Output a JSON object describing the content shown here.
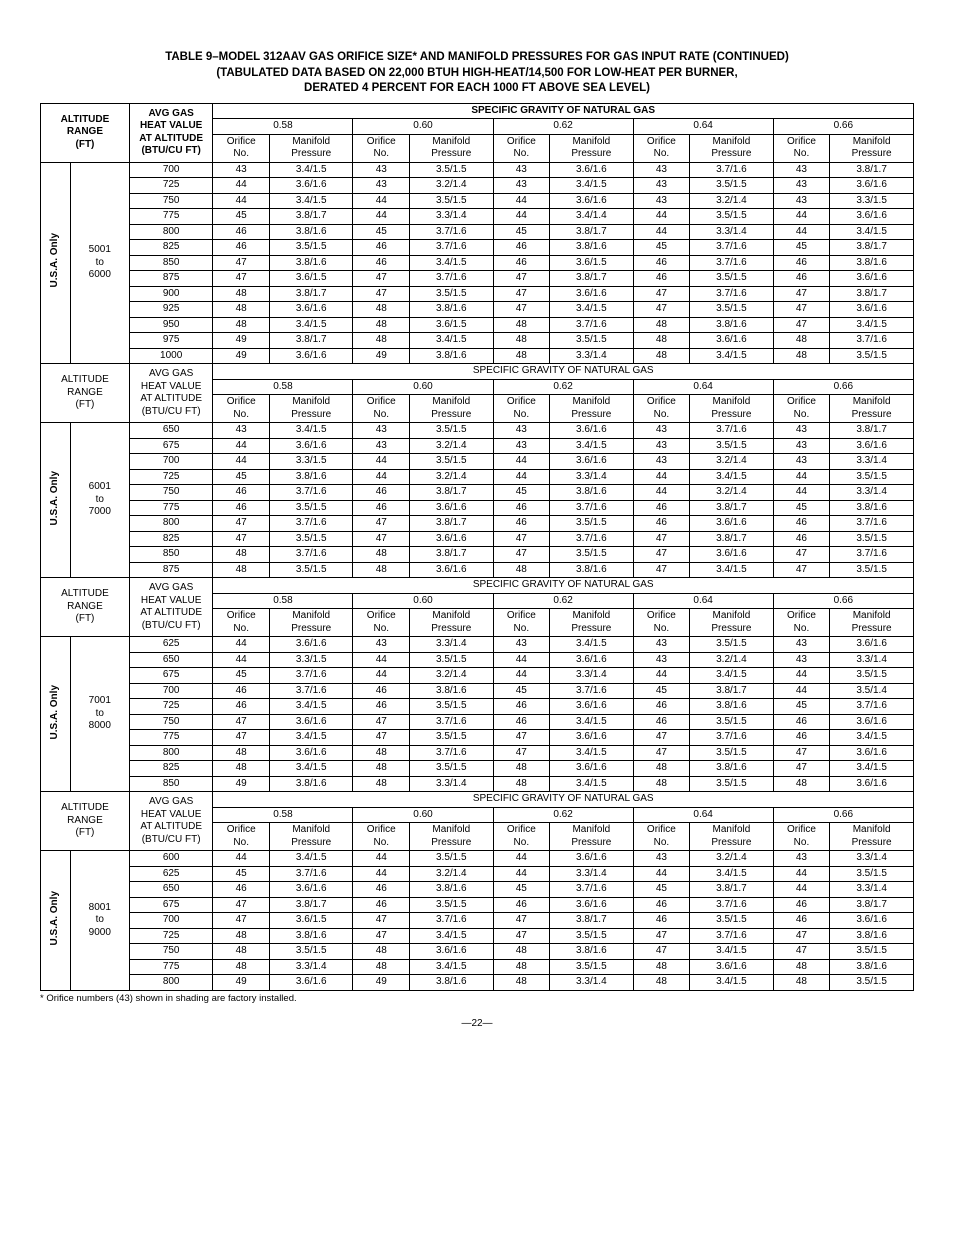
{
  "title_lines": [
    "TABLE 9–MODEL 312AAV GAS ORIFICE SIZE* AND MANIFOLD PRESSURES FOR GAS INPUT RATE (CONTINUED)",
    "(TABULATED DATA BASED ON 22,000 BTUH HIGH-HEAT/14,500 FOR LOW-HEAT PER BURNER,",
    "DERATED 4 PERCENT FOR EACH 1000 FT ABOVE SEA LEVEL)"
  ],
  "col_alt_header": "ALTITUDE\nRANGE\n(FT)",
  "col_btu_header": "AVG GAS\nHEAT VALUE\nAT ALTITUDE\n(BTU/CU FT)",
  "sg_header": "SPECIFIC GRAVITY OF NATURAL GAS",
  "sg_values": [
    "0.58",
    "0.60",
    "0.62",
    "0.64",
    "0.66"
  ],
  "sub_no": "Orifice\nNo.",
  "sub_pr": "Manifold\nPressure",
  "region_label": "U.S.A. Only",
  "footnote": "* Orifice numbers (43) shown in shading are factory installed.",
  "page_num": "—22—",
  "blocks": [
    {
      "alt_range": "5001\nto\n6000",
      "btu": [
        "700",
        "725",
        "750",
        "775",
        "800",
        "825",
        "850",
        "875",
        "900",
        "925",
        "950",
        "975",
        "1000"
      ],
      "rows": [
        [
          "43",
          "3.4/1.5",
          "43",
          "3.5/1.5",
          "43",
          "3.6/1.6",
          "43",
          "3.7/1.6",
          "43",
          "3.8/1.7"
        ],
        [
          "44",
          "3.6/1.6",
          "43",
          "3.2/1.4",
          "43",
          "3.4/1.5",
          "43",
          "3.5/1.5",
          "43",
          "3.6/1.6"
        ],
        [
          "44",
          "3.4/1.5",
          "44",
          "3.5/1.5",
          "44",
          "3.6/1.6",
          "43",
          "3.2/1.4",
          "43",
          "3.3/1.5"
        ],
        [
          "45",
          "3.8/1.7",
          "44",
          "3.3/1.4",
          "44",
          "3.4/1.4",
          "44",
          "3.5/1.5",
          "44",
          "3.6/1.6"
        ],
        [
          "46",
          "3.8/1.6",
          "45",
          "3.7/1.6",
          "45",
          "3.8/1.7",
          "44",
          "3.3/1.4",
          "44",
          "3.4/1.5"
        ],
        [
          "46",
          "3.5/1.5",
          "46",
          "3.7/1.6",
          "46",
          "3.8/1.6",
          "45",
          "3.7/1.6",
          "45",
          "3.8/1.7"
        ],
        [
          "47",
          "3.8/1.6",
          "46",
          "3.4/1.5",
          "46",
          "3.6/1.5",
          "46",
          "3.7/1.6",
          "46",
          "3.8/1.6"
        ],
        [
          "47",
          "3.6/1.5",
          "47",
          "3.7/1.6",
          "47",
          "3.8/1.7",
          "46",
          "3.5/1.5",
          "46",
          "3.6/1.6"
        ],
        [
          "48",
          "3.8/1.7",
          "47",
          "3.5/1.5",
          "47",
          "3.6/1.6",
          "47",
          "3.7/1.6",
          "47",
          "3.8/1.7"
        ],
        [
          "48",
          "3.6/1.6",
          "48",
          "3.8/1.6",
          "47",
          "3.4/1.5",
          "47",
          "3.5/1.5",
          "47",
          "3.6/1.6"
        ],
        [
          "48",
          "3.4/1.5",
          "48",
          "3.6/1.5",
          "48",
          "3.7/1.6",
          "48",
          "3.8/1.6",
          "47",
          "3.4/1.5"
        ],
        [
          "49",
          "3.8/1.7",
          "48",
          "3.4/1.5",
          "48",
          "3.5/1.5",
          "48",
          "3.6/1.6",
          "48",
          "3.7/1.6"
        ],
        [
          "49",
          "3.6/1.6",
          "49",
          "3.8/1.6",
          "48",
          "3.3/1.4",
          "48",
          "3.4/1.5",
          "48",
          "3.5/1.5"
        ]
      ]
    },
    {
      "alt_range": "6001\nto\n7000",
      "btu": [
        "650",
        "675",
        "700",
        "725",
        "750",
        "775",
        "800",
        "825",
        "850",
        "875"
      ],
      "rows": [
        [
          "43",
          "3.4/1.5",
          "43",
          "3.5/1.5",
          "43",
          "3.6/1.6",
          "43",
          "3.7/1.6",
          "43",
          "3.8/1.7"
        ],
        [
          "44",
          "3.6/1.6",
          "43",
          "3.2/1.4",
          "43",
          "3.4/1.5",
          "43",
          "3.5/1.5",
          "43",
          "3.6/1.6"
        ],
        [
          "44",
          "3.3/1.5",
          "44",
          "3.5/1.5",
          "44",
          "3.6/1.6",
          "43",
          "3.2/1.4",
          "43",
          "3.3/1.4"
        ],
        [
          "45",
          "3.8/1.6",
          "44",
          "3.2/1.4",
          "44",
          "3.3/1.4",
          "44",
          "3.4/1.5",
          "44",
          "3.5/1.5"
        ],
        [
          "46",
          "3.7/1.6",
          "46",
          "3.8/1.7",
          "45",
          "3.8/1.6",
          "44",
          "3.2/1.4",
          "44",
          "3.3/1.4"
        ],
        [
          "46",
          "3.5/1.5",
          "46",
          "3.6/1.6",
          "46",
          "3.7/1.6",
          "46",
          "3.8/1.7",
          "45",
          "3.8/1.6"
        ],
        [
          "47",
          "3.7/1.6",
          "47",
          "3.8/1.7",
          "46",
          "3.5/1.5",
          "46",
          "3.6/1.6",
          "46",
          "3.7/1.6"
        ],
        [
          "47",
          "3.5/1.5",
          "47",
          "3.6/1.6",
          "47",
          "3.7/1.6",
          "47",
          "3.8/1.7",
          "46",
          "3.5/1.5"
        ],
        [
          "48",
          "3.7/1.6",
          "48",
          "3.8/1.7",
          "47",
          "3.5/1.5",
          "47",
          "3.6/1.6",
          "47",
          "3.7/1.6"
        ],
        [
          "48",
          "3.5/1.5",
          "48",
          "3.6/1.6",
          "48",
          "3.8/1.6",
          "47",
          "3.4/1.5",
          "47",
          "3.5/1.5"
        ]
      ]
    },
    {
      "alt_range": "7001\nto\n8000",
      "btu": [
        "625",
        "650",
        "675",
        "700",
        "725",
        "750",
        "775",
        "800",
        "825",
        "850"
      ],
      "rows": [
        [
          "44",
          "3.6/1.6",
          "43",
          "3.3/1.4",
          "43",
          "3.4/1.5",
          "43",
          "3.5/1.5",
          "43",
          "3.6/1.6"
        ],
        [
          "44",
          "3.3/1.5",
          "44",
          "3.5/1.5",
          "44",
          "3.6/1.6",
          "43",
          "3.2/1.4",
          "43",
          "3.3/1.4"
        ],
        [
          "45",
          "3.7/1.6",
          "44",
          "3.2/1.4",
          "44",
          "3.3/1.4",
          "44",
          "3.4/1.5",
          "44",
          "3.5/1.5"
        ],
        [
          "46",
          "3.7/1.6",
          "46",
          "3.8/1.6",
          "45",
          "3.7/1.6",
          "45",
          "3.8/1.7",
          "44",
          "3.5/1.4"
        ],
        [
          "46",
          "3.4/1.5",
          "46",
          "3.5/1.5",
          "46",
          "3.6/1.6",
          "46",
          "3.8/1.6",
          "45",
          "3.7/1.6"
        ],
        [
          "47",
          "3.6/1.6",
          "47",
          "3.7/1.6",
          "46",
          "3.4/1.5",
          "46",
          "3.5/1.5",
          "46",
          "3.6/1.6"
        ],
        [
          "47",
          "3.4/1.5",
          "47",
          "3.5/1.5",
          "47",
          "3.6/1.6",
          "47",
          "3.7/1.6",
          "46",
          "3.4/1.5"
        ],
        [
          "48",
          "3.6/1.6",
          "48",
          "3.7/1.6",
          "47",
          "3.4/1.5",
          "47",
          "3.5/1.5",
          "47",
          "3.6/1.6"
        ],
        [
          "48",
          "3.4/1.5",
          "48",
          "3.5/1.5",
          "48",
          "3.6/1.6",
          "48",
          "3.8/1.6",
          "47",
          "3.4/1.5"
        ],
        [
          "49",
          "3.8/1.6",
          "48",
          "3.3/1.4",
          "48",
          "3.4/1.5",
          "48",
          "3.5/1.5",
          "48",
          "3.6/1.6"
        ]
      ]
    },
    {
      "alt_range": "8001\nto\n9000",
      "btu": [
        "600",
        "625",
        "650",
        "675",
        "700",
        "725",
        "750",
        "775",
        "800"
      ],
      "rows": [
        [
          "44",
          "3.4/1.5",
          "44",
          "3.5/1.5",
          "44",
          "3.6/1.6",
          "43",
          "3.2/1.4",
          "43",
          "3.3/1.4"
        ],
        [
          "45",
          "3.7/1.6",
          "44",
          "3.2/1.4",
          "44",
          "3.3/1.4",
          "44",
          "3.4/1.5",
          "44",
          "3.5/1.5"
        ],
        [
          "46",
          "3.6/1.6",
          "46",
          "3.8/1.6",
          "45",
          "3.7/1.6",
          "45",
          "3.8/1.7",
          "44",
          "3.3/1.4"
        ],
        [
          "47",
          "3.8/1.7",
          "46",
          "3.5/1.5",
          "46",
          "3.6/1.6",
          "46",
          "3.7/1.6",
          "46",
          "3.8/1.7"
        ],
        [
          "47",
          "3.6/1.5",
          "47",
          "3.7/1.6",
          "47",
          "3.8/1.7",
          "46",
          "3.5/1.5",
          "46",
          "3.6/1.6"
        ],
        [
          "48",
          "3.8/1.6",
          "47",
          "3.4/1.5",
          "47",
          "3.5/1.5",
          "47",
          "3.7/1.6",
          "47",
          "3.8/1.6"
        ],
        [
          "48",
          "3.5/1.5",
          "48",
          "3.6/1.6",
          "48",
          "3.8/1.6",
          "47",
          "3.4/1.5",
          "47",
          "3.5/1.5"
        ],
        [
          "48",
          "3.3/1.4",
          "48",
          "3.4/1.5",
          "48",
          "3.5/1.5",
          "48",
          "3.6/1.6",
          "48",
          "3.8/1.6"
        ],
        [
          "49",
          "3.6/1.6",
          "49",
          "3.8/1.6",
          "48",
          "3.3/1.4",
          "48",
          "3.4/1.5",
          "48",
          "3.5/1.5"
        ]
      ]
    }
  ]
}
